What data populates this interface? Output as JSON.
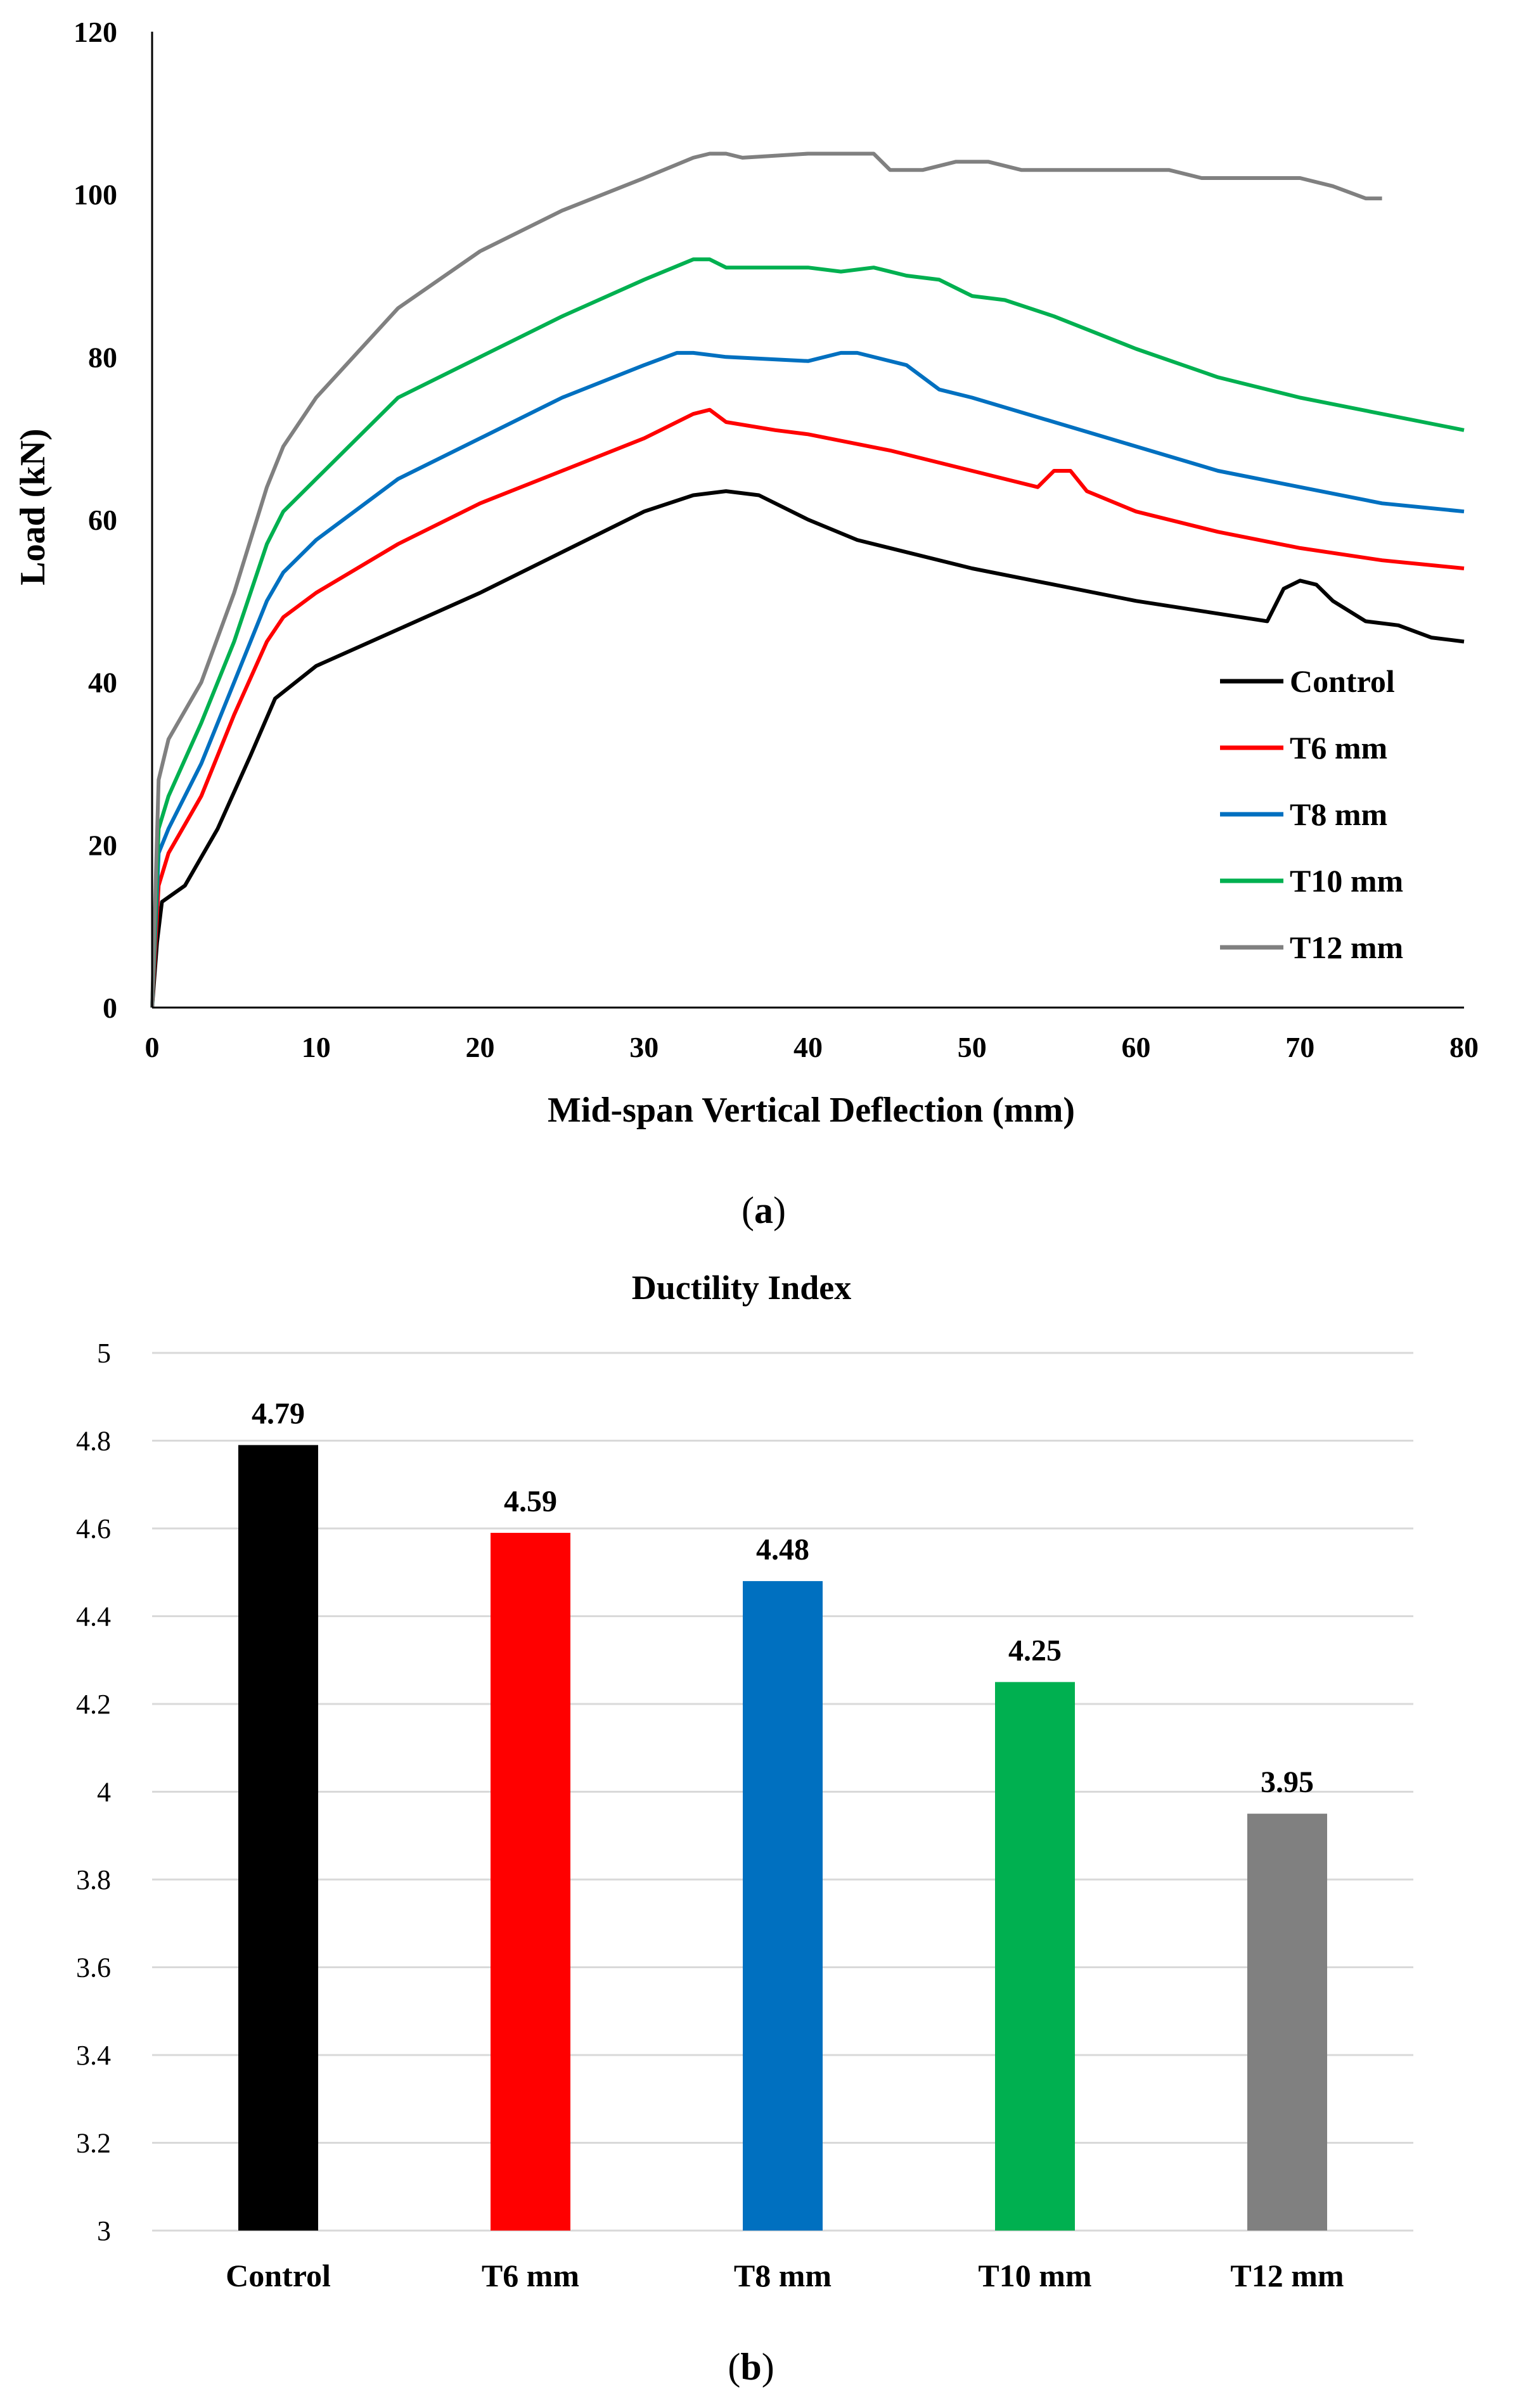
{
  "chart_data": [
    {
      "type": "line",
      "panel_label": "a",
      "title": "",
      "xlabel": "Mid-span Vertical Deflection (mm)",
      "ylabel": "Load (kN)",
      "xlim": [
        0,
        80
      ],
      "ylim": [
        0,
        120
      ],
      "xticks": [
        "0",
        "10",
        "20",
        "30",
        "40",
        "50",
        "60",
        "70",
        "80"
      ],
      "yticks": [
        "0",
        "20",
        "40",
        "60",
        "80",
        "100",
        "120"
      ],
      "legend_position": "bottom-right",
      "grid": false,
      "series": [
        {
          "name": "Control",
          "color": "#000000",
          "points": [
            [
              0,
              0
            ],
            [
              0.3,
              8
            ],
            [
              0.6,
              13
            ],
            [
              2,
              15
            ],
            [
              4,
              22
            ],
            [
              6,
              31
            ],
            [
              7.5,
              38
            ],
            [
              10,
              42
            ],
            [
              15,
              46.5
            ],
            [
              20,
              51
            ],
            [
              25,
              56
            ],
            [
              30,
              61
            ],
            [
              33,
              63
            ],
            [
              35,
              63.5
            ],
            [
              37,
              63
            ],
            [
              40,
              60
            ],
            [
              43,
              57.5
            ],
            [
              50,
              54
            ],
            [
              60,
              50
            ],
            [
              68,
              47.5
            ],
            [
              69,
              51.5
            ],
            [
              70,
              52.5
            ],
            [
              71,
              52
            ],
            [
              72,
              50
            ],
            [
              74,
              47.5
            ],
            [
              76,
              47
            ],
            [
              78,
              45.5
            ],
            [
              80,
              45
            ]
          ]
        },
        {
          "name": "T6 mm",
          "color": "#ff0000",
          "points": [
            [
              0,
              0
            ],
            [
              0.4,
              15
            ],
            [
              1,
              19
            ],
            [
              3,
              26
            ],
            [
              5,
              36
            ],
            [
              7,
              45
            ],
            [
              8,
              48
            ],
            [
              10,
              51
            ],
            [
              15,
              57
            ],
            [
              20,
              62
            ],
            [
              25,
              66
            ],
            [
              30,
              70
            ],
            [
              33,
              73
            ],
            [
              34,
              73.5
            ],
            [
              35,
              72
            ],
            [
              38,
              71
            ],
            [
              40,
              70.5
            ],
            [
              45,
              68.5
            ],
            [
              50,
              66
            ],
            [
              54,
              64
            ],
            [
              55,
              66
            ],
            [
              56,
              66
            ],
            [
              57,
              63.5
            ],
            [
              60,
              61
            ],
            [
              65,
              58.5
            ],
            [
              70,
              56.5
            ],
            [
              75,
              55
            ],
            [
              80,
              54
            ]
          ]
        },
        {
          "name": "T8 mm",
          "color": "#0070c0",
          "points": [
            [
              0,
              0
            ],
            [
              0.4,
              19
            ],
            [
              1,
              22
            ],
            [
              3,
              30
            ],
            [
              5,
              40
            ],
            [
              7,
              50
            ],
            [
              8,
              53.5
            ],
            [
              10,
              57.5
            ],
            [
              15,
              65
            ],
            [
              20,
              70
            ],
            [
              25,
              75
            ],
            [
              30,
              79
            ],
            [
              32,
              80.5
            ],
            [
              33,
              80.5
            ],
            [
              35,
              80
            ],
            [
              40,
              79.5
            ],
            [
              42,
              80.5
            ],
            [
              43,
              80.5
            ],
            [
              46,
              79
            ],
            [
              48,
              76
            ],
            [
              50,
              75
            ],
            [
              55,
              72
            ],
            [
              60,
              69
            ],
            [
              65,
              66
            ],
            [
              70,
              64
            ],
            [
              75,
              62
            ],
            [
              80,
              61
            ]
          ]
        },
        {
          "name": "T10 mm",
          "color": "#00b050",
          "points": [
            [
              0,
              0
            ],
            [
              0.4,
              22
            ],
            [
              1,
              26
            ],
            [
              3,
              35
            ],
            [
              5,
              45
            ],
            [
              7,
              57
            ],
            [
              8,
              61
            ],
            [
              10,
              65
            ],
            [
              15,
              75
            ],
            [
              20,
              80
            ],
            [
              25,
              85
            ],
            [
              30,
              89.5
            ],
            [
              33,
              92
            ],
            [
              34,
              92
            ],
            [
              35,
              91
            ],
            [
              40,
              91
            ],
            [
              42,
              90.5
            ],
            [
              44,
              91
            ],
            [
              46,
              90
            ],
            [
              48,
              89.5
            ],
            [
              50,
              87.5
            ],
            [
              52,
              87
            ],
            [
              55,
              85
            ],
            [
              60,
              81
            ],
            [
              65,
              77.5
            ],
            [
              70,
              75
            ],
            [
              75,
              73
            ],
            [
              80,
              71
            ]
          ]
        },
        {
          "name": "T12 mm",
          "color": "#808080",
          "points": [
            [
              0,
              0
            ],
            [
              0.4,
              28
            ],
            [
              1,
              33
            ],
            [
              3,
              40
            ],
            [
              5,
              51
            ],
            [
              7,
              64
            ],
            [
              8,
              69
            ],
            [
              10,
              75
            ],
            [
              15,
              86
            ],
            [
              20,
              93
            ],
            [
              25,
              98
            ],
            [
              30,
              102
            ],
            [
              33,
              104.5
            ],
            [
              34,
              105
            ],
            [
              35,
              105
            ],
            [
              36,
              104.5
            ],
            [
              40,
              105
            ],
            [
              42,
              105
            ],
            [
              44,
              105
            ],
            [
              45,
              103
            ],
            [
              47,
              103
            ],
            [
              49,
              104
            ],
            [
              51,
              104
            ],
            [
              53,
              103
            ],
            [
              60,
              103
            ],
            [
              62,
              103
            ],
            [
              64,
              102
            ],
            [
              66,
              102
            ],
            [
              70,
              102
            ],
            [
              72,
              101
            ],
            [
              74,
              99.5
            ],
            [
              75,
              99.5
            ]
          ]
        }
      ]
    },
    {
      "type": "bar",
      "panel_label": "b",
      "title": "Ductility Index",
      "xlabel": "",
      "ylabel": "",
      "ylim": [
        3,
        5
      ],
      "yticks": [
        "3",
        "3.2",
        "3.4",
        "3.6",
        "3.8",
        "4",
        "4.2",
        "4.4",
        "4.6",
        "4.8",
        "5"
      ],
      "grid": true,
      "categories": [
        "Control",
        "T6 mm",
        "T8 mm",
        "T10 mm",
        "T12 mm"
      ],
      "values": [
        4.79,
        4.59,
        4.48,
        4.25,
        3.95
      ],
      "data_labels": [
        "4.79",
        "4.59",
        "4.48",
        "4.25",
        "3.95"
      ],
      "colors": [
        "#000000",
        "#ff0000",
        "#0070c0",
        "#00b050",
        "#808080"
      ]
    }
  ]
}
